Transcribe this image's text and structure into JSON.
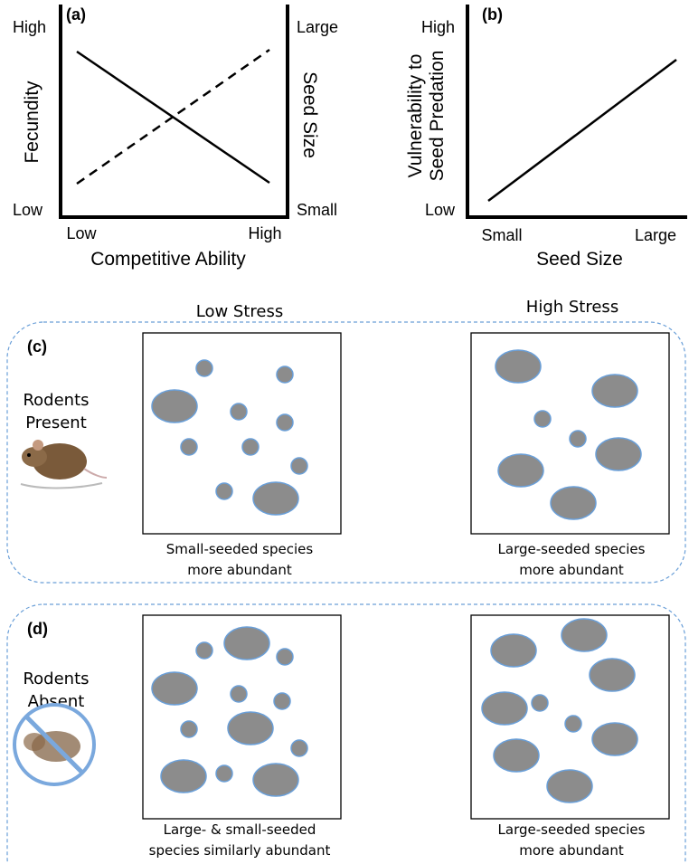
{
  "panel_a": {
    "label": "(a)",
    "y_label": "Fecundity",
    "y_high": "High",
    "y_low": "Low",
    "y2_label": "Seed Size",
    "y2_high": "Large",
    "y2_low": "Small",
    "x_label": "Competitive Ability",
    "x_low": "Low",
    "x_high": "High"
  },
  "panel_b": {
    "label": "(b)",
    "y_label_lines": [
      "Vulnerability to",
      "Seed Predation"
    ],
    "y_high": "High",
    "y_low": "Low",
    "x_label": "Seed Size",
    "x_low": "Small",
    "x_high": "Large"
  },
  "columns": [
    "Low Stress",
    "High Stress"
  ],
  "panel_c": {
    "label": "(c)",
    "row_label_lines": [
      "Rodents",
      "Present"
    ],
    "captions": [
      [
        "Small-seeded species",
        "more abundant"
      ],
      [
        "Large-seeded species",
        "more abundant"
      ]
    ]
  },
  "panel_d": {
    "label": "(d)",
    "row_label_lines": [
      "Rodents",
      "Absent"
    ],
    "captions": [
      [
        "Large- & small-seeded",
        "species similarly abundant"
      ],
      [
        "Large-seeded species",
        "more abundant"
      ]
    ]
  }
}
